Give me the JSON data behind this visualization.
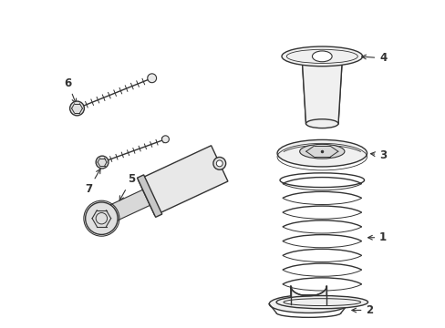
{
  "background_color": "#ffffff",
  "line_color": "#333333",
  "line_width": 1.0,
  "font_size": 8.5,
  "parts": {
    "part1_label": "1",
    "part2_label": "2",
    "part3_label": "3",
    "part4_label": "4",
    "part5_label": "5",
    "part6_label": "6",
    "part7_label": "7"
  }
}
